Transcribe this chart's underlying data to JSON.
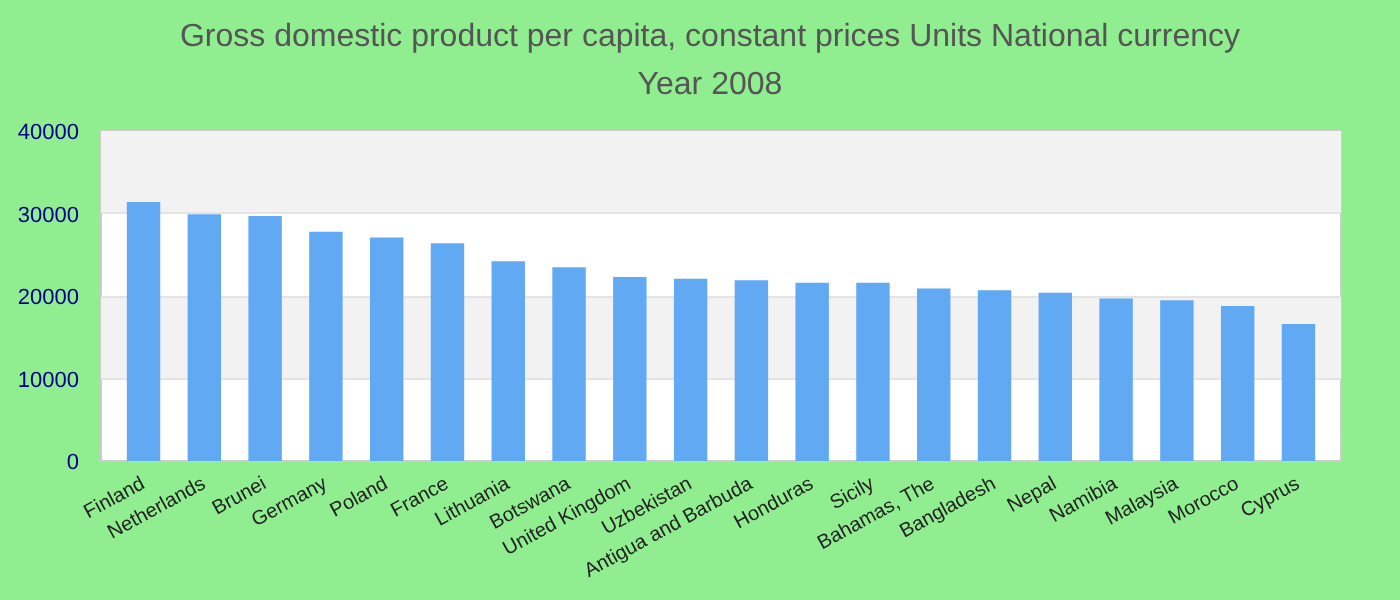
{
  "chart_data": {
    "type": "bar",
    "title": "Gross domestic product per capita, constant prices Units National currency\nYear 2008",
    "categories": [
      "Finland",
      "Netherlands",
      "Brunei",
      "Germany",
      "Poland",
      "France",
      "Lithuania",
      "Botswana",
      "United Kingdom",
      "Uzbekistan",
      "Antigua and Barbuda",
      "Honduras",
      "Sicily",
      "Bahamas, The",
      "Bangladesh",
      "Nepal",
      "Namibia",
      "Malaysia",
      "Morocco",
      "Cyprus"
    ],
    "values": [
      31400,
      29900,
      29700,
      27800,
      27100,
      26400,
      24200,
      23500,
      22300,
      22100,
      21900,
      21600,
      21600,
      20900,
      20700,
      20400,
      19700,
      19500,
      18800,
      16600
    ],
    "color": "#62a9f4",
    "ylim": [
      0,
      40000
    ],
    "yticks": [
      0,
      10000,
      20000,
      30000,
      40000
    ],
    "grid": "y"
  }
}
